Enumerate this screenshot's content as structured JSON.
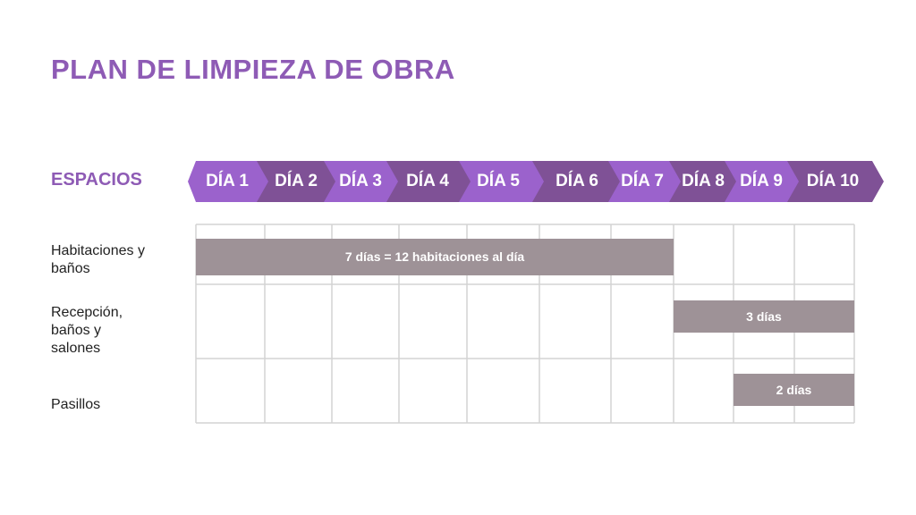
{
  "title": "PLAN DE LIMPIEZA DE OBRA",
  "header_label": "ESPACIOS",
  "days": [
    "DÍA 1",
    "DÍA 2",
    "DÍA 3",
    "DÍA 4",
    "DÍA 5",
    "DÍA 6",
    "DÍA 7",
    "DÍA 8",
    "DÍA 9",
    "DÍA 10"
  ],
  "rows": [
    {
      "label": "Habitaciones y baños",
      "bar": "7 días = 12 habitaciones al día",
      "start_day": 1,
      "end_day": 7
    },
    {
      "label": "Recepción, baños y salones",
      "bar": "3 días",
      "start_day": 8,
      "end_day": 10
    },
    {
      "label": "Pasillos",
      "bar": "2 días",
      "start_day": 9,
      "end_day": 10
    }
  ],
  "colors": {
    "accent": "#8e5bb5",
    "chevron_light": "#9b62cc",
    "chevron_dark": "#7f5196",
    "bar": "#9e9297",
    "grid": "#d4d4d4"
  }
}
